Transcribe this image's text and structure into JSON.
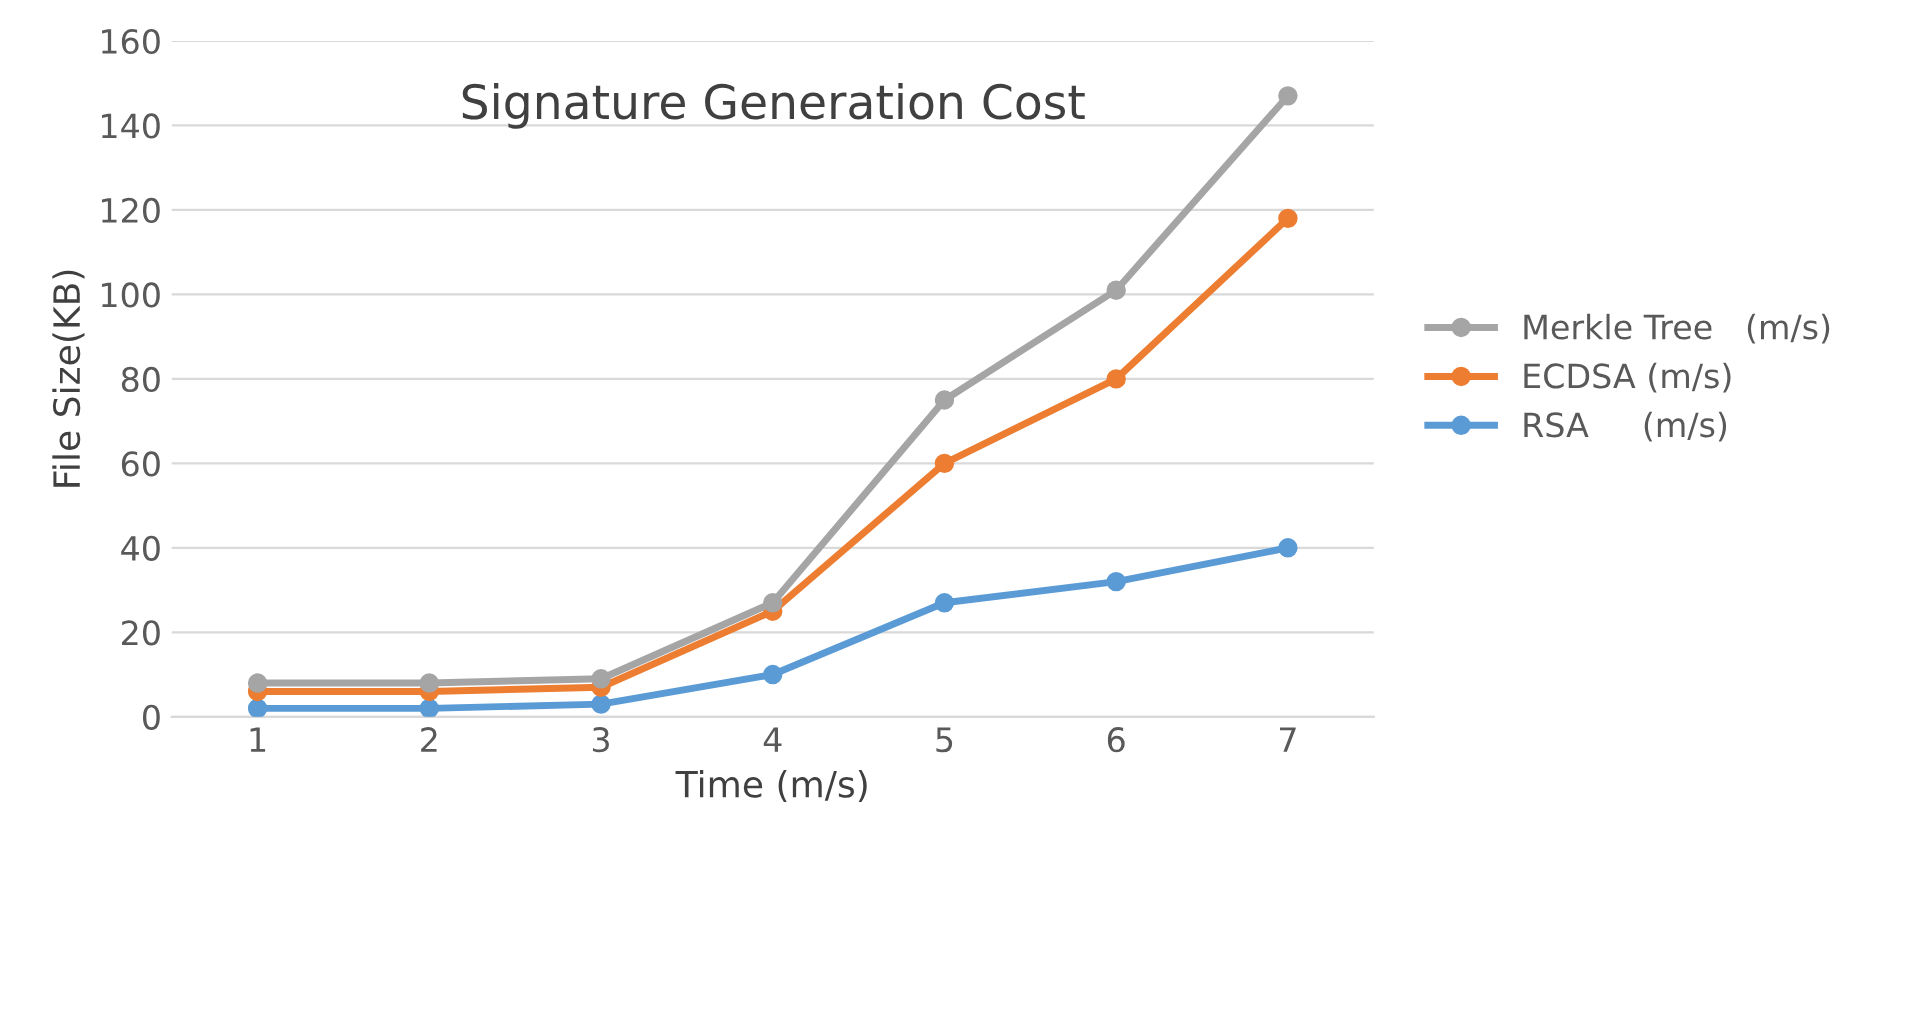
{
  "chart_data": {
    "type": "line",
    "title": "Signature Generation Cost",
    "xlabel": "Time (m/s)",
    "ylabel": "File Size(KB)",
    "categories": [
      "1",
      "2",
      "3",
      "4",
      "5",
      "6",
      "7"
    ],
    "series": [
      {
        "name": "Merkle Tree   (m/s)",
        "color": "#a5a5a5",
        "values": [
          8,
          8,
          9,
          27,
          75,
          101,
          147
        ]
      },
      {
        "name": "ECDSA (m/s)",
        "color": "#ed7d31",
        "values": [
          6,
          6,
          7,
          25,
          60,
          80,
          118
        ]
      },
      {
        "name": "RSA     (m/s)",
        "color": "#5b9bd5",
        "values": [
          2,
          2,
          3,
          10,
          27,
          32,
          40
        ]
      }
    ],
    "ylim": [
      0,
      160
    ],
    "yticks": [
      0,
      20,
      40,
      60,
      80,
      100,
      120,
      140,
      160
    ],
    "grid": "y",
    "legend": "right",
    "marker": "circle",
    "line_style": "solid"
  }
}
